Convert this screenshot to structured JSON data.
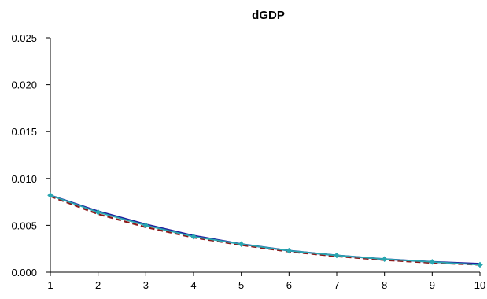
{
  "chart_data": {
    "type": "line",
    "title": "dGDP",
    "xlabel": "",
    "ylabel": "",
    "x": [
      1,
      2,
      3,
      4,
      5,
      6,
      7,
      8,
      9,
      10
    ],
    "xlim": [
      1,
      10
    ],
    "ylim": [
      0,
      0.025
    ],
    "yticks": [
      "0.000",
      "0.005",
      "0.010",
      "0.015",
      "0.020",
      "0.025"
    ],
    "xticks": [
      "1",
      "2",
      "3",
      "4",
      "5",
      "6",
      "7",
      "8",
      "9",
      "10"
    ],
    "grid": false,
    "legend": "none",
    "series": [
      {
        "values": [
          0.0082,
          0.0065,
          0.0051,
          0.0039,
          0.003,
          0.0023,
          0.0018,
          0.0014,
          0.0011,
          0.0009
        ],
        "color": "#1f1f9e",
        "style": "solid"
      },
      {
        "values": [
          0.0081,
          0.0062,
          0.0048,
          0.0037,
          0.0029,
          0.0022,
          0.0017,
          0.0013,
          0.001,
          0.0008
        ],
        "color": "#8b1a1a",
        "style": "dashed"
      },
      {
        "values": [
          0.0082,
          0.0064,
          0.005,
          0.0038,
          0.003,
          0.0023,
          0.0018,
          0.0014,
          0.0011,
          0.0008
        ],
        "color": "#2aa6b0",
        "style": "marker-line",
        "marker": "diamond"
      }
    ]
  }
}
